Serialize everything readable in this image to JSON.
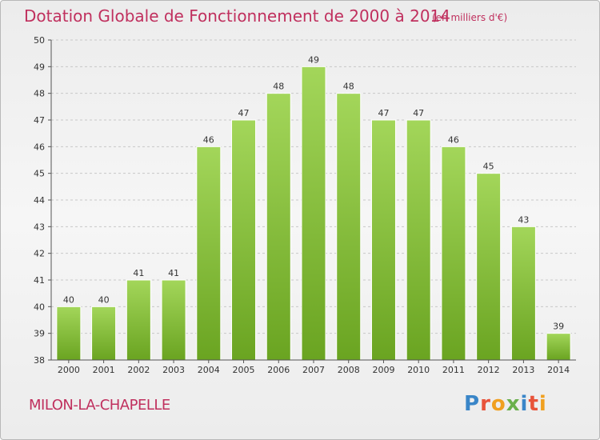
{
  "header": {
    "title": "Dotation Globale de Fonctionnement de 2000 à 2014",
    "unit": "(en milliers d'€)"
  },
  "footer": {
    "town": "MILON-LA-CHAPELLE",
    "logo": "Proxiti",
    "logo_colors": [
      "#3a86c8",
      "#e8533a",
      "#f0a020",
      "#6ab04c",
      "#3a86c8",
      "#e8533a",
      "#f0a020"
    ]
  },
  "colors": {
    "bar_light": "#a3d65a",
    "bar_dark": "#6aa421",
    "axis": "#555555",
    "grid": "#c8c8c8",
    "accent": "#c0305e"
  },
  "chart_data": {
    "type": "bar",
    "categories": [
      "2000",
      "2001",
      "2002",
      "2003",
      "2004",
      "2005",
      "2006",
      "2007",
      "2008",
      "2009",
      "2010",
      "2011",
      "2012",
      "2013",
      "2014"
    ],
    "values": [
      40,
      40,
      41,
      41,
      46,
      47,
      48,
      49,
      48,
      47,
      47,
      46,
      45,
      43,
      39
    ],
    "ylim": [
      38,
      50
    ],
    "yticks": [
      38,
      39,
      40,
      41,
      42,
      43,
      44,
      45,
      46,
      47,
      48,
      49,
      50
    ],
    "grid": true,
    "legend": "none"
  }
}
